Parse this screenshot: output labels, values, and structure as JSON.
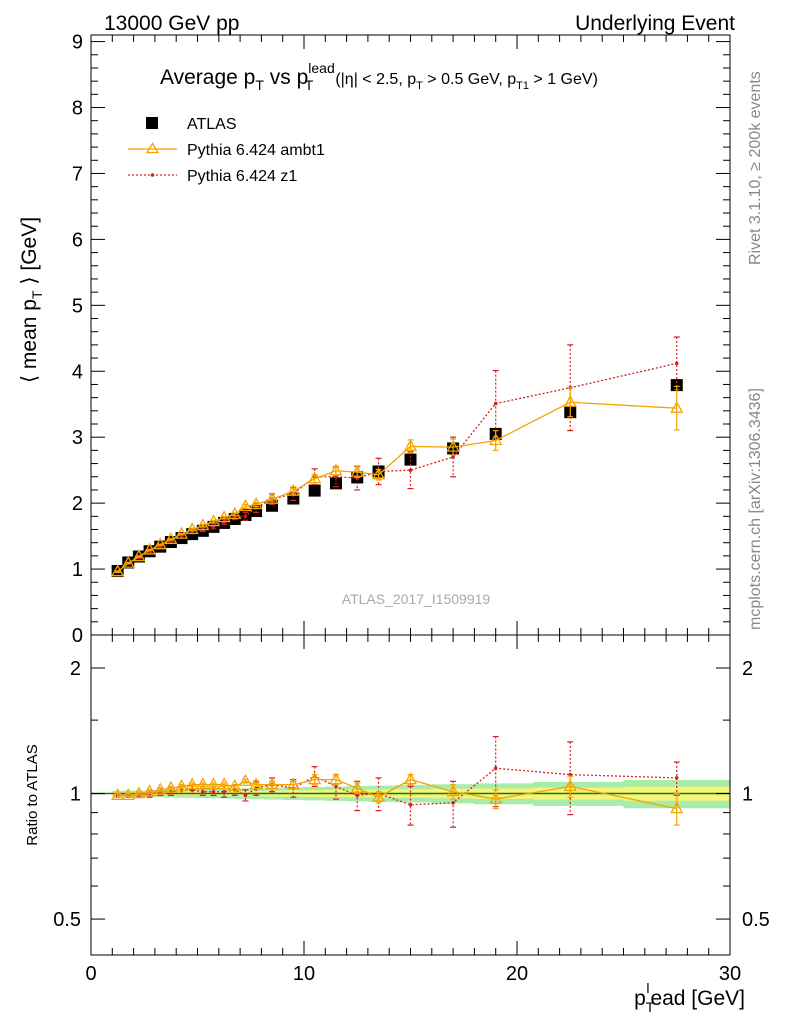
{
  "header": {
    "left": "13000 GeV pp",
    "right": "Underlying Event"
  },
  "side": {
    "top": "Rivet 3.1.10, ≥ 200k events",
    "bottom": "mcplots.cern.ch [arXiv:1306.3436]"
  },
  "chart_data": [
    {
      "type": "scatter",
      "title": {
        "main": "Average p",
        "main_sub": "T",
        "vs": " vs p",
        "vs_sub": "T",
        "vs_sup": "lead",
        "cuts_a": "(|η| < 2.5, p",
        "cuts_a_sub": "T",
        "cuts_b": " > 0.5 GeV, p",
        "cuts_b_sub": "T1",
        "cuts_c": " > 1 GeV)"
      },
      "ylabel": {
        "pre": "⟨ mean p",
        "sub": "T",
        "post": " ⟩ [GeV]"
      },
      "watermark": "ATLAS_2017_I1509919",
      "xlim": [
        0,
        30
      ],
      "ylim": [
        0,
        9.1
      ],
      "yticks": [
        "0",
        "1",
        "2",
        "3",
        "4",
        "5",
        "6",
        "7",
        "8",
        "9"
      ],
      "legend": {
        "position": "top-left",
        "entries": [
          {
            "label": "ATLAS",
            "color": "#000000",
            "marker": "square"
          },
          {
            "label": "Pythia 6.424 ambt1",
            "color": "#f2a400",
            "marker": "triangle"
          },
          {
            "label": "Pythia 6.424 z1",
            "color": "#d62020",
            "marker": "dot-dotted"
          }
        ]
      },
      "series": [
        {
          "name": "ATLAS",
          "x": [
            1.25,
            1.75,
            2.25,
            2.75,
            3.25,
            3.75,
            4.25,
            4.75,
            5.25,
            5.75,
            6.25,
            6.75,
            7.25,
            7.75,
            8.5,
            9.5,
            10.5,
            11.5,
            12.5,
            13.5,
            15,
            17,
            19,
            22.5,
            27.5
          ],
          "y": [
            0.97,
            1.1,
            1.19,
            1.27,
            1.34,
            1.41,
            1.47,
            1.53,
            1.58,
            1.64,
            1.7,
            1.76,
            1.82,
            1.88,
            1.96,
            2.07,
            2.19,
            2.3,
            2.39,
            2.48,
            2.66,
            2.83,
            3.05,
            3.38,
            3.79
          ]
        },
        {
          "name": "Pythia 6.424 ambt1",
          "x": [
            1.25,
            1.75,
            2.25,
            2.75,
            3.25,
            3.75,
            4.25,
            4.75,
            5.25,
            5.75,
            6.25,
            6.75,
            7.25,
            7.75,
            8.5,
            9.5,
            10.5,
            11.5,
            12.5,
            13.5,
            15,
            17,
            19,
            22.5,
            27.5
          ],
          "y": [
            0.96,
            1.09,
            1.19,
            1.29,
            1.37,
            1.45,
            1.53,
            1.6,
            1.66,
            1.72,
            1.78,
            1.83,
            1.95,
            1.98,
            2.06,
            2.18,
            2.37,
            2.49,
            2.47,
            2.43,
            2.86,
            2.85,
            2.95,
            3.53,
            3.44
          ],
          "yerr": [
            0.01,
            0.01,
            0.01,
            0.01,
            0.01,
            0.01,
            0.01,
            0.02,
            0.02,
            0.02,
            0.02,
            0.02,
            0.03,
            0.03,
            0.03,
            0.04,
            0.06,
            0.07,
            0.08,
            0.08,
            0.1,
            0.12,
            0.15,
            0.22,
            0.33
          ]
        },
        {
          "name": "Pythia 6.424 z1",
          "x": [
            1.25,
            1.75,
            2.25,
            2.75,
            3.25,
            3.75,
            4.25,
            4.75,
            5.25,
            5.75,
            6.25,
            6.75,
            7.25,
            7.75,
            8.5,
            9.5,
            10.5,
            11.5,
            12.5,
            13.5,
            15,
            17,
            19,
            22.5,
            27.5
          ],
          "y": [
            0.96,
            1.09,
            1.18,
            1.27,
            1.35,
            1.43,
            1.5,
            1.57,
            1.6,
            1.65,
            1.72,
            1.8,
            1.8,
            1.93,
            2.06,
            2.14,
            2.4,
            2.4,
            2.38,
            2.48,
            2.5,
            2.7,
            3.51,
            3.75,
            4.12
          ],
          "yerr": [
            0.01,
            0.01,
            0.02,
            0.02,
            0.02,
            0.02,
            0.03,
            0.03,
            0.03,
            0.04,
            0.04,
            0.05,
            0.06,
            0.07,
            0.08,
            0.1,
            0.12,
            0.15,
            0.18,
            0.2,
            0.28,
            0.3,
            0.5,
            0.65,
            0.4
          ]
        }
      ]
    },
    {
      "type": "scatter",
      "ylabel": "Ratio to ATLAS",
      "xlabel": {
        "pre": "p",
        "sub": "T",
        "sup": "l",
        "post": "ead [GeV]"
      },
      "xlim": [
        0,
        30
      ],
      "ylim": [
        0.41,
        2.4
      ],
      "xticks": [
        "0",
        "10",
        "20",
        "30"
      ],
      "yticks": [
        {
          "value": 0.5,
          "label": "0.5"
        },
        {
          "value": 1,
          "label": "1"
        },
        {
          "value": 2,
          "label": "2"
        }
      ],
      "series": [
        {
          "name": "Pythia 6.424 ambt1",
          "x": [
            1.25,
            1.75,
            2.25,
            2.75,
            3.25,
            3.75,
            4.25,
            4.75,
            5.25,
            5.75,
            6.25,
            6.75,
            7.25,
            7.75,
            8.5,
            9.5,
            10.5,
            11.5,
            12.5,
            13.5,
            15,
            17,
            19,
            22.5,
            27.5
          ],
          "y": [
            0.99,
            0.99,
            1.0,
            1.01,
            1.02,
            1.03,
            1.04,
            1.05,
            1.05,
            1.05,
            1.05,
            1.04,
            1.07,
            1.05,
            1.05,
            1.05,
            1.08,
            1.08,
            1.03,
            0.98,
            1.08,
            1.01,
            0.97,
            1.04,
            0.92
          ],
          "yerr": [
            0.01,
            0.01,
            0.01,
            0.01,
            0.01,
            0.01,
            0.01,
            0.01,
            0.01,
            0.01,
            0.01,
            0.01,
            0.01,
            0.01,
            0.02,
            0.02,
            0.03,
            0.03,
            0.03,
            0.03,
            0.03,
            0.04,
            0.05,
            0.06,
            0.08
          ]
        },
        {
          "name": "Pythia 6.424 z1",
          "x": [
            1.25,
            1.75,
            2.25,
            2.75,
            3.25,
            3.75,
            4.25,
            4.75,
            5.25,
            5.75,
            6.25,
            6.75,
            7.25,
            7.75,
            8.5,
            9.5,
            10.5,
            11.5,
            12.5,
            13.5,
            15,
            17,
            19,
            22.5,
            27.5
          ],
          "y": [
            0.99,
            0.99,
            0.99,
            1.0,
            1.01,
            1.01,
            1.02,
            1.02,
            1.01,
            1.01,
            1.01,
            1.02,
            0.99,
            1.03,
            1.05,
            1.03,
            1.1,
            1.04,
            0.99,
            1.0,
            0.94,
            0.95,
            1.15,
            1.11,
            1.09
          ],
          "yerr": [
            0.01,
            0.01,
            0.01,
            0.02,
            0.02,
            0.02,
            0.02,
            0.02,
            0.02,
            0.02,
            0.03,
            0.03,
            0.03,
            0.04,
            0.04,
            0.05,
            0.06,
            0.07,
            0.08,
            0.09,
            0.1,
            0.12,
            0.22,
            0.22,
            0.1
          ]
        }
      ],
      "band": {
        "inner_color": "#f5f57a",
        "outer_color": "#a9eba9",
        "line_color": "#127a12"
      }
    }
  ]
}
